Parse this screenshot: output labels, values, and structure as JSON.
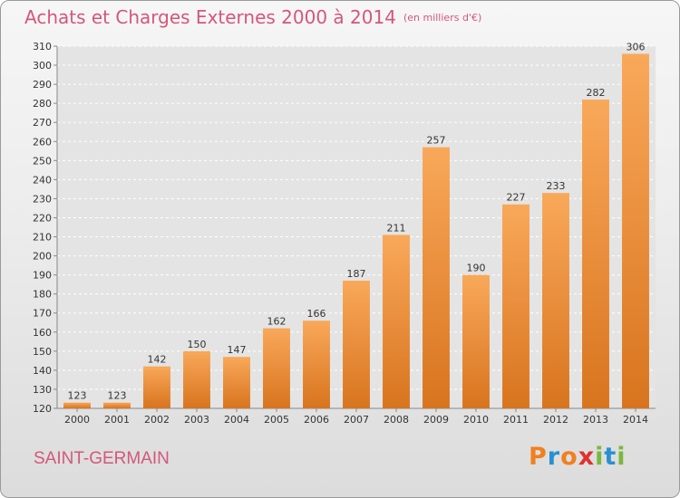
{
  "header": {
    "title": "Achats et Charges Externes 2000 à 2014",
    "subtitle": "(en milliers d'€)"
  },
  "footer": {
    "commune": "SAINT-GERMAIN",
    "logo": {
      "letters": [
        "P",
        "r",
        "o",
        "x",
        "i",
        "t",
        "i"
      ],
      "colors": [
        "#f08020",
        "#2a8fd0",
        "#f08020",
        "#e03030",
        "#7ab83c",
        "#2a8fd0",
        "#7ab83c"
      ]
    }
  },
  "colors": {
    "bar_light": "#f9a85a",
    "bar_dark": "#d8741e",
    "grid": "#ffffff",
    "axis_text": "#333333",
    "accent": "#d4577a"
  },
  "chart_data": {
    "type": "bar",
    "title": "Achats et Charges Externes 2000 à 2014",
    "subtitle": "(en milliers d'€)",
    "categories": [
      "2000",
      "2001",
      "2002",
      "2003",
      "2004",
      "2005",
      "2006",
      "2007",
      "2008",
      "2009",
      "2010",
      "2011",
      "2012",
      "2013",
      "2014"
    ],
    "values": [
      123,
      123,
      142,
      150,
      147,
      162,
      166,
      187,
      211,
      257,
      190,
      227,
      233,
      282,
      306
    ],
    "ylim": [
      120,
      310
    ],
    "yticks": [
      120,
      130,
      140,
      150,
      160,
      170,
      180,
      190,
      200,
      210,
      220,
      230,
      240,
      250,
      260,
      270,
      280,
      290,
      300,
      310
    ],
    "grid": true,
    "data_labels": true
  }
}
